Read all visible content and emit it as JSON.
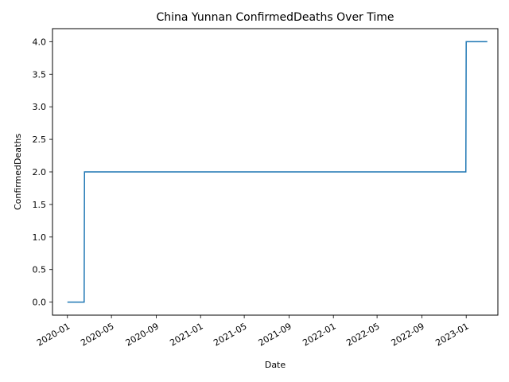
{
  "chart_data": {
    "type": "line",
    "title": "China Yunnan ConfirmedDeaths Over Time",
    "xlabel": "Date",
    "ylabel": "ConfirmedDeaths",
    "x_axis_type": "date",
    "xlim": [
      "2019-11-21",
      "2023-03-29"
    ],
    "ylim": [
      -0.2,
      4.2
    ],
    "x_ticks": [
      "2020-01",
      "2020-05",
      "2020-09",
      "2021-01",
      "2021-05",
      "2021-09",
      "2022-01",
      "2022-05",
      "2022-09",
      "2023-01"
    ],
    "y_ticks": [
      "0.0",
      "0.5",
      "1.0",
      "1.5",
      "2.0",
      "2.5",
      "3.0",
      "3.5",
      "4.0"
    ],
    "grid": false,
    "line_color": "#1f77b4",
    "series": [
      {
        "x": [
          "2020-01-01",
          "2020-02-16",
          "2020-02-17",
          "2022-12-31",
          "2023-01-01",
          "2023-02-28"
        ],
        "y": [
          0,
          0,
          2,
          2,
          4,
          4
        ]
      }
    ]
  }
}
